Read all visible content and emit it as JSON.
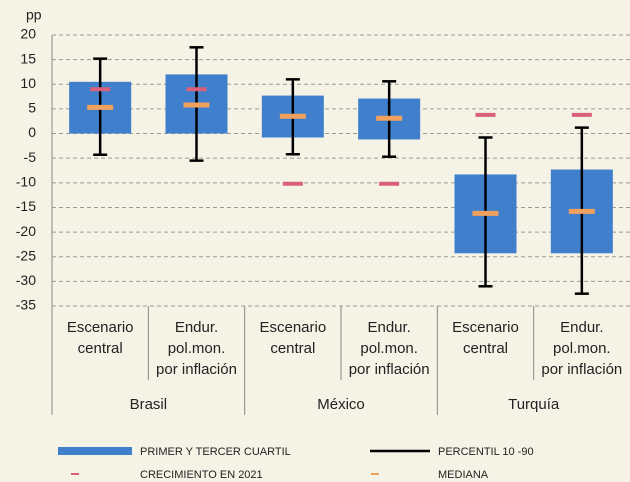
{
  "chart_data": {
    "type": "box",
    "y_label": "pp",
    "categories": [
      [
        "Escenario",
        "central"
      ],
      [
        "Endur.",
        "pol.mon.",
        "por inflación"
      ],
      [
        "Escenario",
        "central"
      ],
      [
        "Endur.",
        "pol.mon.",
        "por inflación"
      ],
      [
        "Escenario",
        "central"
      ],
      [
        "Endur.",
        "pol.mon.",
        "por inflación"
      ]
    ],
    "groups": [
      "Brasil",
      "México",
      "Turquía"
    ],
    "series": [
      {
        "name": "PRIMER Y TERCER CUARTIL",
        "color": "#3f7fcb",
        "low": [
          0,
          0,
          -0.8,
          -1.2,
          -24.3,
          -24.3
        ],
        "high": [
          10.5,
          12,
          7.7,
          7.1,
          -8.3,
          -7.3
        ]
      },
      {
        "name": "PERCENTIL 10 -90",
        "color": "#000000",
        "low": [
          -4.3,
          -5.5,
          -4.2,
          -4.7,
          -31,
          -32.5
        ],
        "high": [
          15.2,
          17.5,
          11,
          10.6,
          -0.8,
          1.2
        ]
      },
      {
        "name": "CRECIMIENTO EN 2021",
        "color": "#d9607a",
        "values": [
          9,
          9,
          -10.2,
          -10.2,
          3.8,
          3.8
        ]
      },
      {
        "name": "MEDIANA",
        "color": "#f2a05e",
        "values": [
          5.3,
          5.8,
          3.5,
          3.1,
          -16.2,
          -15.8
        ]
      }
    ],
    "ylim": [
      -35,
      20
    ],
    "yticks": [
      20,
      15,
      10,
      5,
      0,
      -5,
      -10,
      -15,
      -20,
      -25,
      -30,
      -35
    ],
    "grid": true
  }
}
